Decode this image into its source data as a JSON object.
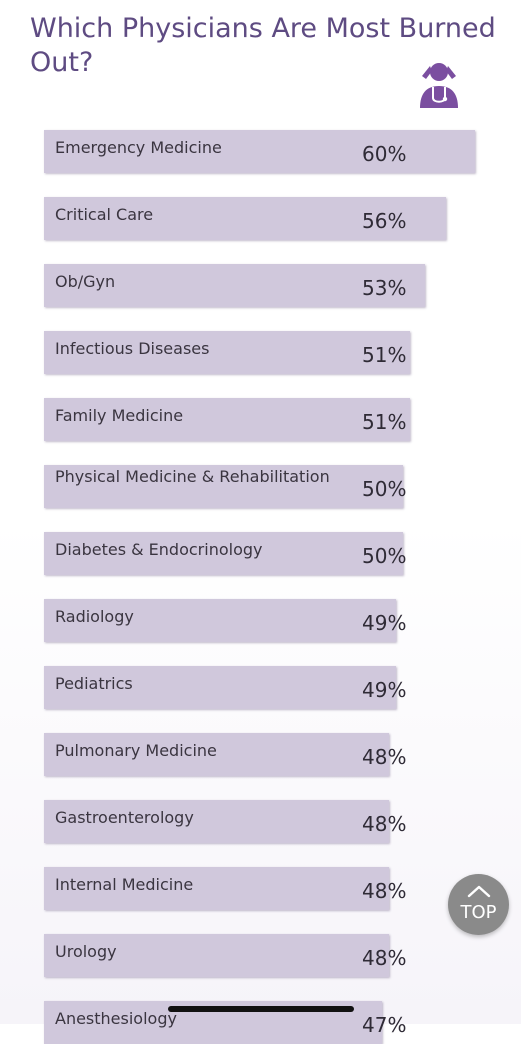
{
  "title": "Which Physicians Are Most Burned Out?",
  "icon": "physician-stress-icon",
  "colors": {
    "title": "#5e4b82",
    "bar": "#d0c8dc",
    "icon": "#7b4fa0"
  },
  "chart_data": {
    "type": "bar",
    "orientation": "horizontal",
    "title": "Which Physicians Are Most Burned Out?",
    "categories": [
      "Emergency Medicine",
      "Critical Care",
      "Ob/Gyn",
      "Infectious Diseases",
      "Family Medicine",
      "Physical Medicine & Rehabilitation",
      "Diabetes & Endocrinology",
      "Radiology",
      "Pediatrics",
      "Pulmonary Medicine",
      "Gastroenterology",
      "Internal Medicine",
      "Urology",
      "Anesthesiology"
    ],
    "values": [
      60,
      56,
      53,
      51,
      51,
      50,
      50,
      49,
      49,
      48,
      48,
      48,
      48,
      47
    ],
    "value_labels": [
      "60%",
      "56%",
      "53%",
      "51%",
      "51%",
      "50%",
      "50%",
      "49%",
      "49%",
      "48%",
      "48%",
      "48%",
      "48%",
      "47%"
    ],
    "unit": "%",
    "xlabel": "",
    "ylabel": "",
    "legend": "none",
    "grid": false
  },
  "top_button": {
    "label": "TOP",
    "icon": "chevron-up-icon"
  }
}
